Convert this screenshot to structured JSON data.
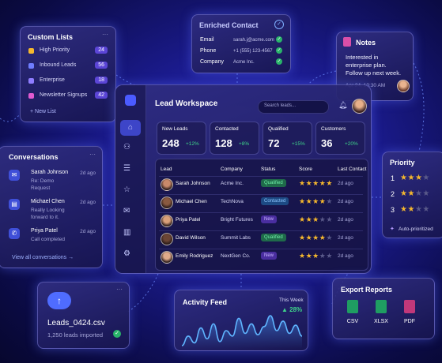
{
  "custom_lists": {
    "title": "Custom Lists",
    "items": [
      {
        "name": "High Priority",
        "count": 24
      },
      {
        "name": "Inbound Leads",
        "count": 56
      },
      {
        "name": "Enterprise",
        "count": 18
      },
      {
        "name": "Newsletter Signups",
        "count": 42
      }
    ],
    "new_list": "+ New List"
  },
  "enriched_contact": {
    "title": "Enriched Contact",
    "fields": [
      {
        "label": "Email",
        "value": "sarah.j@acme.com"
      },
      {
        "label": "Phone",
        "value": "+1 (555) 123-4567"
      },
      {
        "label": "Company",
        "value": "Acme Inc."
      }
    ]
  },
  "notes": {
    "title": "Notes",
    "text": "Interested in enterprise plan. Follow up next week.",
    "timestamp": "Apr 24, 10:30 AM"
  },
  "conversations": {
    "title": "Conversations",
    "items": [
      {
        "name": "Sarah Johnson",
        "time": "2d ago",
        "message": "Re: Demo Request"
      },
      {
        "name": "Michael Chen",
        "time": "2d ago",
        "message": "Really Looking forward to it."
      },
      {
        "name": "Priya Patel",
        "time": "2d ago",
        "message": "Call completed"
      }
    ],
    "link": "View all conversations →"
  },
  "workspace": {
    "title": "Lead Workspace",
    "search_placeholder": "Search leads...",
    "stats": [
      {
        "label": "New Leads",
        "value": 248,
        "change": "+12%"
      },
      {
        "label": "Contacted",
        "value": 128,
        "change": "+8%"
      },
      {
        "label": "Qualified",
        "value": 72,
        "change": "+15%"
      },
      {
        "label": "Customers",
        "value": 36,
        "change": "+20%"
      }
    ],
    "columns": [
      "Lead",
      "Company",
      "Status",
      "Score",
      "Last Contact"
    ],
    "rows": [
      {
        "lead": "Sarah Johnson",
        "company": "Acme Inc.",
        "status": "Qualified",
        "score": 5,
        "last_contact": "2d ago"
      },
      {
        "lead": "Michael Chen",
        "company": "TechNova",
        "status": "Contacted",
        "score": 4,
        "last_contact": "2d ago"
      },
      {
        "lead": "Priya Patel",
        "company": "Bright Futures",
        "status": "New",
        "score": 3,
        "last_contact": "2d ago"
      },
      {
        "lead": "David Wilson",
        "company": "Summit Labs",
        "status": "Qualified",
        "score": 4,
        "last_contact": "2d ago"
      },
      {
        "lead": "Emily Rodriguez",
        "company": "NextGen Co.",
        "status": "New",
        "score": 3,
        "last_contact": "2d ago"
      }
    ]
  },
  "priority": {
    "title": "Priority",
    "ranks": [
      {
        "rank": 1,
        "score": 3
      },
      {
        "rank": 2,
        "score": 2
      },
      {
        "rank": 3,
        "score": 2
      }
    ],
    "note": "Auto-prioritized"
  },
  "upload": {
    "file": "Leads_0424.csv",
    "status": "1,250 leads imported"
  },
  "activity_feed": {
    "title": "Activity Feed",
    "period": "This Week",
    "change": "▲ 28%",
    "trend": [
      30,
      44,
      34,
      56,
      40,
      62,
      36,
      52,
      44,
      70,
      48,
      62,
      46,
      58,
      74,
      52,
      66,
      48,
      60,
      44
    ]
  },
  "export_reports": {
    "title": "Export Reports",
    "formats": [
      "CSV",
      "XLSX",
      "PDF"
    ]
  }
}
